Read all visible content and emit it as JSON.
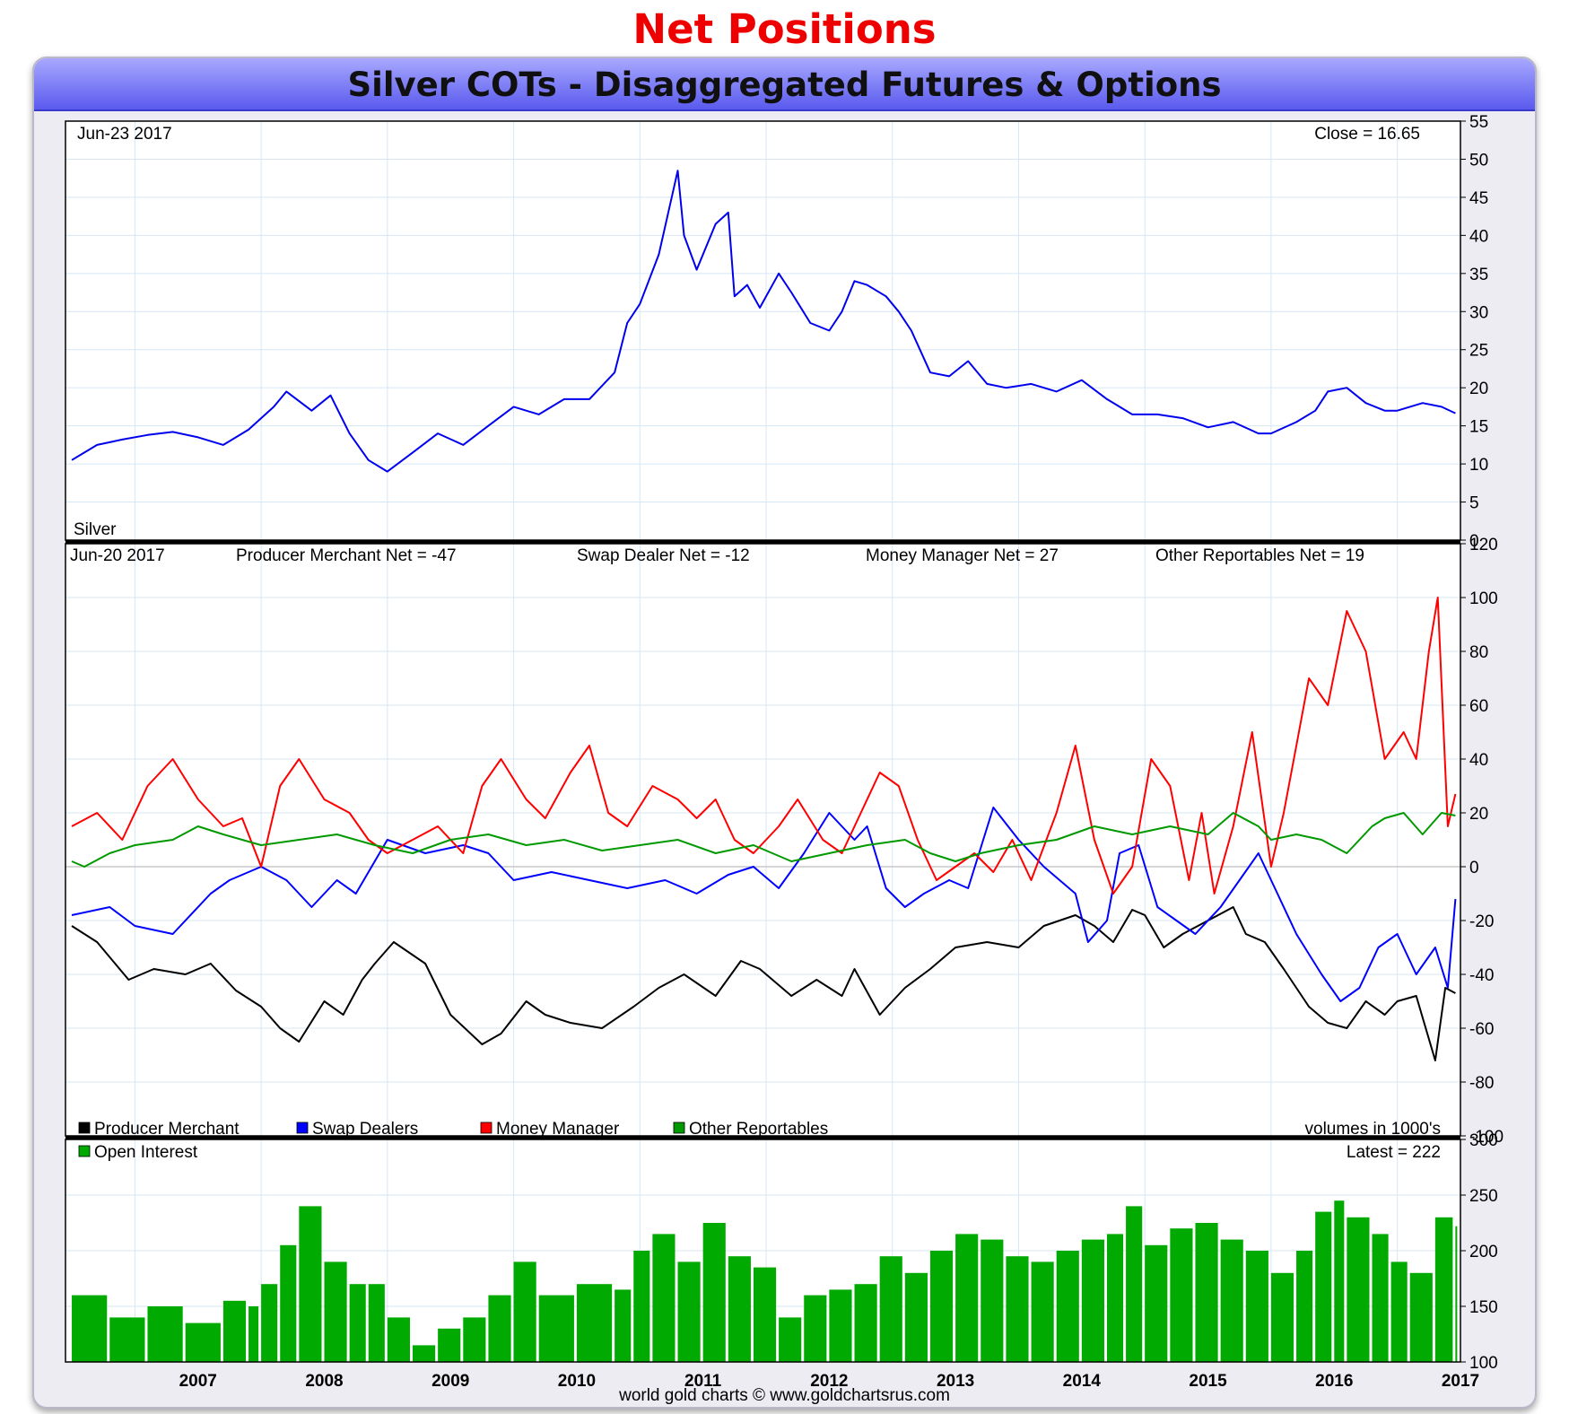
{
  "page": {
    "title": "Net Positions",
    "chart_title": "Silver COTs - Disaggregated Futures & Options",
    "credit": "world gold charts © www.goldchartsrus.com"
  },
  "colors": {
    "title": "#ee0000",
    "header": "#6a6af2",
    "price": "#0000ee",
    "producer": "#000000",
    "swap": "#0000ff",
    "money": "#ff0000",
    "other": "#009900",
    "oi": "#00aa00"
  },
  "chart_data": [
    {
      "type": "line",
      "id": "price",
      "date_label": "Jun-23  2017",
      "info_label": "Close = 16.65",
      "series_label": "Silver",
      "ylim": [
        0,
        55
      ],
      "yticks": [
        0,
        5,
        10,
        15,
        20,
        25,
        30,
        35,
        40,
        45,
        50,
        55
      ],
      "grid": true,
      "series": [
        {
          "name": "Silver",
          "color": "#0000ee",
          "x": [
            2006.5,
            2006.7,
            2006.9,
            2007.1,
            2007.3,
            2007.5,
            2007.7,
            2007.9,
            2008.1,
            2008.2,
            2008.4,
            2008.55,
            2008.7,
            2008.85,
            2009.0,
            2009.2,
            2009.4,
            2009.6,
            2009.8,
            2010.0,
            2010.2,
            2010.4,
            2010.6,
            2010.8,
            2010.9,
            2011.0,
            2011.15,
            2011.3,
            2011.35,
            2011.45,
            2011.6,
            2011.7,
            2011.75,
            2011.85,
            2011.95,
            2012.1,
            2012.2,
            2012.35,
            2012.5,
            2012.6,
            2012.7,
            2012.8,
            2012.95,
            2013.05,
            2013.15,
            2013.3,
            2013.45,
            2013.6,
            2013.75,
            2013.9,
            2014.1,
            2014.3,
            2014.5,
            2014.7,
            2014.9,
            2015.1,
            2015.3,
            2015.5,
            2015.7,
            2015.9,
            2016.0,
            2016.2,
            2016.35,
            2016.45,
            2016.6,
            2016.75,
            2016.9,
            2017.0,
            2017.2,
            2017.35,
            2017.46
          ],
          "y": [
            10.5,
            12.5,
            13.2,
            13.8,
            14.2,
            13.5,
            12.5,
            14.5,
            17.5,
            19.5,
            17.0,
            19.0,
            14.0,
            10.5,
            9.0,
            11.5,
            14.0,
            12.5,
            15.0,
            17.5,
            16.5,
            18.5,
            18.5,
            22.0,
            28.5,
            31.0,
            37.5,
            48.5,
            40.0,
            35.5,
            41.5,
            43.0,
            32.0,
            33.5,
            30.5,
            35.0,
            32.5,
            28.5,
            27.5,
            30.0,
            34.0,
            33.5,
            32.0,
            30.0,
            27.5,
            22.0,
            21.5,
            23.5,
            20.5,
            20.0,
            20.5,
            19.5,
            21.0,
            18.5,
            16.5,
            16.5,
            16.0,
            14.8,
            15.5,
            14.0,
            14.0,
            15.5,
            17.0,
            19.5,
            20.0,
            18.0,
            17.0,
            17.0,
            18.0,
            17.5,
            16.65
          ]
        }
      ]
    },
    {
      "type": "line",
      "id": "cot",
      "date_label": "Jun-20  2017",
      "headers": [
        "Producer Merchant Net = -47",
        "Swap Dealer Net = -12",
        "Money Manager Net = 27",
        "Other Reportables Net = 19"
      ],
      "units_label": "volumes in 1000's",
      "ylim": [
        -100,
        120
      ],
      "yticks": [
        -100,
        -80,
        -60,
        -40,
        -20,
        0,
        20,
        40,
        60,
        80,
        100,
        120
      ],
      "grid": true,
      "legend": "bottom-left",
      "series": [
        {
          "name": "Producer Merchant",
          "color": "#000000",
          "x": [
            2006.5,
            2006.7,
            2006.95,
            2007.15,
            2007.4,
            2007.6,
            2007.8,
            2008.0,
            2008.15,
            2008.3,
            2008.5,
            2008.65,
            2008.8,
            2008.9,
            2009.05,
            2009.3,
            2009.5,
            2009.75,
            2009.9,
            2010.1,
            2010.25,
            2010.45,
            2010.7,
            2010.95,
            2011.15,
            2011.35,
            2011.6,
            2011.8,
            2011.95,
            2012.2,
            2012.4,
            2012.6,
            2012.7,
            2012.9,
            2013.1,
            2013.3,
            2013.5,
            2013.75,
            2014.0,
            2014.2,
            2014.45,
            2014.6,
            2014.75,
            2014.9,
            2015.0,
            2015.15,
            2015.3,
            2015.5,
            2015.7,
            2015.8,
            2015.95,
            2016.1,
            2016.3,
            2016.45,
            2016.6,
            2016.75,
            2016.9,
            2017.0,
            2017.15,
            2017.3,
            2017.38,
            2017.46
          ],
          "y": [
            -22,
            -28,
            -42,
            -38,
            -40,
            -36,
            -46,
            -52,
            -60,
            -65,
            -50,
            -55,
            -42,
            -36,
            -28,
            -36,
            -55,
            -66,
            -62,
            -50,
            -55,
            -58,
            -60,
            -52,
            -45,
            -40,
            -48,
            -35,
            -38,
            -48,
            -42,
            -48,
            -38,
            -55,
            -45,
            -38,
            -30,
            -28,
            -30,
            -22,
            -18,
            -22,
            -28,
            -16,
            -18,
            -30,
            -25,
            -20,
            -15,
            -25,
            -28,
            -38,
            -52,
            -58,
            -60,
            -50,
            -55,
            -50,
            -48,
            -72,
            -45,
            -47
          ]
        },
        {
          "name": "Swap Dealers",
          "color": "#0000ff",
          "x": [
            2006.5,
            2006.8,
            2007.0,
            2007.3,
            2007.6,
            2007.75,
            2008.0,
            2008.2,
            2008.4,
            2008.6,
            2008.75,
            2009.0,
            2009.3,
            2009.6,
            2009.8,
            2010.0,
            2010.3,
            2010.6,
            2010.9,
            2011.2,
            2011.45,
            2011.7,
            2011.9,
            2012.1,
            2012.3,
            2012.5,
            2012.7,
            2012.8,
            2012.95,
            2013.1,
            2013.25,
            2013.45,
            2013.6,
            2013.8,
            2014.0,
            2014.2,
            2014.45,
            2014.55,
            2014.7,
            2014.8,
            2014.95,
            2015.1,
            2015.25,
            2015.4,
            2015.6,
            2015.75,
            2015.9,
            2016.05,
            2016.2,
            2016.4,
            2016.55,
            2016.7,
            2016.85,
            2017.0,
            2017.15,
            2017.3,
            2017.4,
            2017.46
          ],
          "y": [
            -18,
            -15,
            -22,
            -25,
            -10,
            -5,
            0,
            -5,
            -15,
            -5,
            -10,
            10,
            5,
            8,
            5,
            -5,
            -2,
            -5,
            -8,
            -5,
            -10,
            -3,
            0,
            -8,
            5,
            20,
            10,
            15,
            -8,
            -15,
            -10,
            -5,
            -8,
            22,
            10,
            0,
            -10,
            -28,
            -20,
            5,
            8,
            -15,
            -20,
            -25,
            -15,
            -5,
            5,
            -10,
            -25,
            -40,
            -50,
            -45,
            -30,
            -25,
            -40,
            -30,
            -45,
            -12
          ]
        },
        {
          "name": "Money Manager",
          "color": "#ff0000",
          "x": [
            2006.5,
            2006.7,
            2006.9,
            2007.1,
            2007.3,
            2007.5,
            2007.7,
            2007.85,
            2008.0,
            2008.15,
            2008.3,
            2008.5,
            2008.7,
            2008.85,
            2009.0,
            2009.2,
            2009.4,
            2009.6,
            2009.75,
            2009.9,
            2010.1,
            2010.25,
            2010.45,
            2010.6,
            2010.75,
            2010.9,
            2011.1,
            2011.3,
            2011.45,
            2011.6,
            2011.75,
            2011.9,
            2012.1,
            2012.25,
            2012.45,
            2012.6,
            2012.75,
            2012.9,
            2013.05,
            2013.2,
            2013.35,
            2013.5,
            2013.65,
            2013.8,
            2013.95,
            2014.1,
            2014.3,
            2014.45,
            2014.6,
            2014.75,
            2014.9,
            2015.05,
            2015.2,
            2015.35,
            2015.45,
            2015.55,
            2015.7,
            2015.85,
            2016.0,
            2016.1,
            2016.2,
            2016.3,
            2016.45,
            2016.6,
            2016.75,
            2016.9,
            2017.05,
            2017.15,
            2017.25,
            2017.32,
            2017.4,
            2017.46
          ],
          "y": [
            15,
            20,
            10,
            30,
            40,
            25,
            15,
            18,
            0,
            30,
            40,
            25,
            20,
            10,
            5,
            10,
            15,
            5,
            30,
            40,
            25,
            18,
            35,
            45,
            20,
            15,
            30,
            25,
            18,
            25,
            10,
            5,
            15,
            25,
            10,
            5,
            20,
            35,
            30,
            10,
            -5,
            0,
            5,
            -2,
            10,
            -5,
            20,
            45,
            10,
            -10,
            0,
            40,
            30,
            -5,
            20,
            -10,
            15,
            50,
            0,
            20,
            45,
            70,
            60,
            95,
            80,
            40,
            50,
            40,
            80,
            100,
            15,
            27
          ]
        },
        {
          "name": "Other Reportables",
          "color": "#009900",
          "x": [
            2006.5,
            2006.6,
            2006.8,
            2007.0,
            2007.3,
            2007.5,
            2007.7,
            2008.0,
            2008.3,
            2008.6,
            2008.9,
            2009.2,
            2009.5,
            2009.8,
            2010.1,
            2010.4,
            2010.7,
            2011.0,
            2011.3,
            2011.6,
            2011.9,
            2012.2,
            2012.5,
            2012.8,
            2013.1,
            2013.3,
            2013.5,
            2013.7,
            2014.0,
            2014.3,
            2014.6,
            2014.9,
            2015.2,
            2015.5,
            2015.7,
            2015.9,
            2016.0,
            2016.2,
            2016.4,
            2016.6,
            2016.8,
            2016.9,
            2017.05,
            2017.2,
            2017.35,
            2017.46
          ],
          "y": [
            2,
            0,
            5,
            8,
            10,
            15,
            12,
            8,
            10,
            12,
            8,
            5,
            10,
            12,
            8,
            10,
            6,
            8,
            10,
            5,
            8,
            2,
            5,
            8,
            10,
            5,
            2,
            5,
            8,
            10,
            15,
            12,
            15,
            12,
            20,
            15,
            10,
            12,
            10,
            5,
            15,
            18,
            20,
            12,
            20,
            19
          ]
        }
      ]
    },
    {
      "type": "bar",
      "id": "oi",
      "series_label": "Open Interest",
      "info_label": "Latest = 222",
      "ylim": [
        100,
        300
      ],
      "yticks": [
        100,
        150,
        200,
        250,
        300
      ],
      "grid": true,
      "series": [
        {
          "name": "Open Interest",
          "color": "#00aa00",
          "x": [
            2006.5,
            2006.8,
            2007.1,
            2007.4,
            2007.7,
            2007.9,
            2008.0,
            2008.15,
            2008.3,
            2008.5,
            2008.7,
            2008.85,
            2009.0,
            2009.2,
            2009.4,
            2009.6,
            2009.8,
            2010.0,
            2010.2,
            2010.5,
            2010.8,
            2010.95,
            2011.1,
            2011.3,
            2011.5,
            2011.7,
            2011.9,
            2012.1,
            2012.3,
            2012.5,
            2012.7,
            2012.9,
            2013.1,
            2013.3,
            2013.5,
            2013.7,
            2013.9,
            2014.1,
            2014.3,
            2014.5,
            2014.7,
            2014.85,
            2015.0,
            2015.2,
            2015.4,
            2015.6,
            2015.8,
            2016.0,
            2016.2,
            2016.35,
            2016.5,
            2016.6,
            2016.8,
            2016.95,
            2017.1,
            2017.3,
            2017.46
          ],
          "y": [
            160,
            140,
            150,
            135,
            155,
            150,
            170,
            205,
            240,
            190,
            170,
            170,
            140,
            115,
            130,
            140,
            160,
            190,
            160,
            170,
            165,
            200,
            215,
            190,
            225,
            195,
            185,
            140,
            160,
            165,
            170,
            195,
            180,
            200,
            215,
            210,
            195,
            190,
            200,
            210,
            215,
            240,
            205,
            220,
            225,
            210,
            200,
            180,
            200,
            235,
            245,
            230,
            215,
            190,
            180,
            230,
            222
          ]
        }
      ]
    }
  ],
  "xaxis": {
    "start": 2006.45,
    "end": 2017.5,
    "tick_labels": [
      "2007",
      "2008",
      "2009",
      "2010",
      "2011",
      "2012",
      "2013",
      "2014",
      "2015",
      "2016",
      "2017"
    ]
  }
}
